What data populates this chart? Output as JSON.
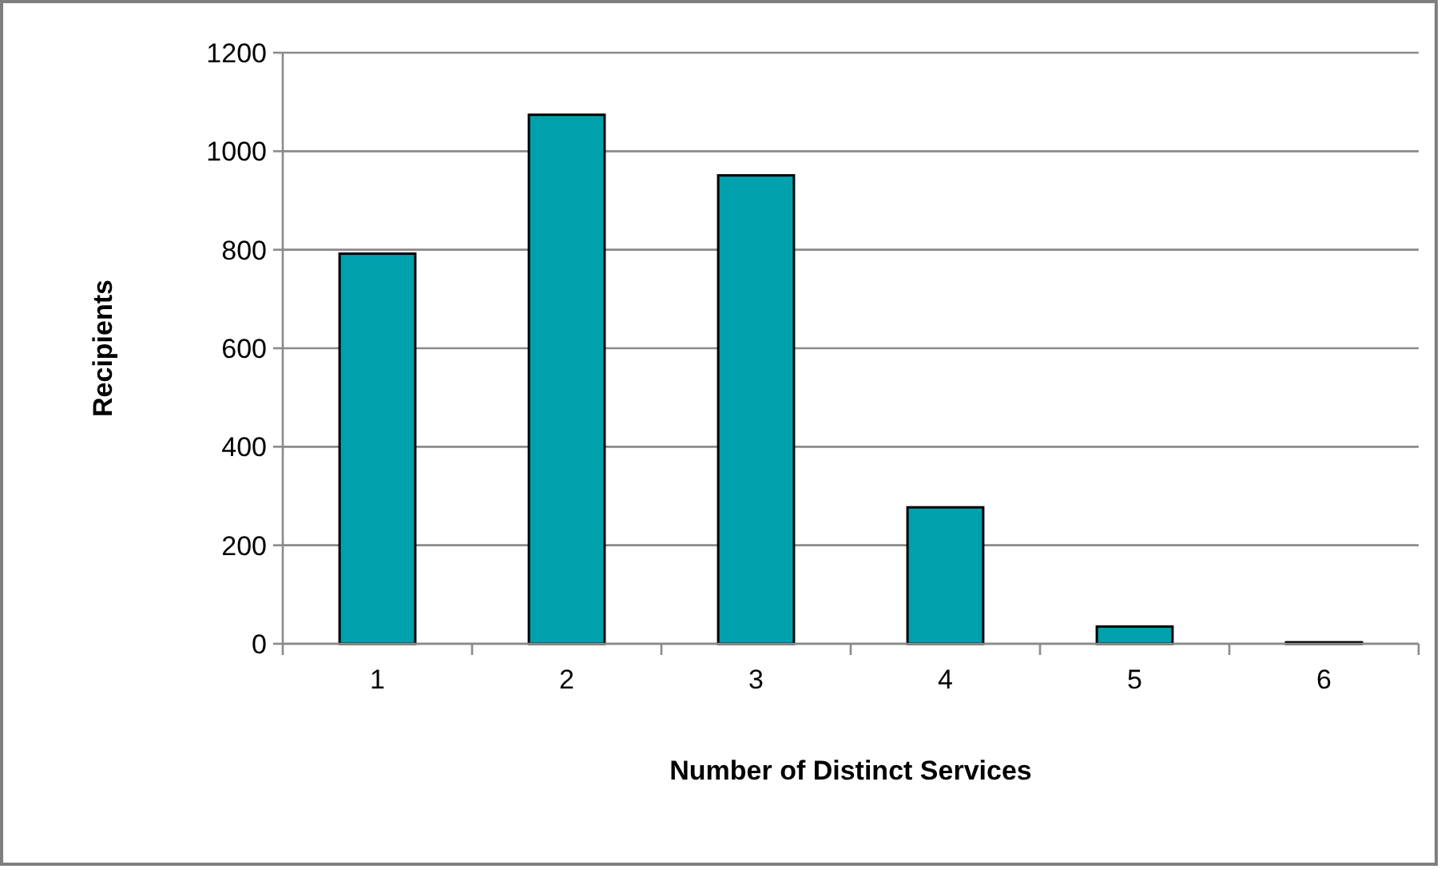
{
  "chart_data": {
    "type": "bar",
    "xlabel": "Number of Distinct Services",
    "ylabel": "Recipients",
    "categories": [
      "1",
      "2",
      "3",
      "4",
      "5",
      "6"
    ],
    "values": [
      792,
      1074,
      951,
      277,
      35,
      3
    ],
    "color": "#00a0ad",
    "ylim": [
      0,
      1200
    ],
    "yticks": [
      0,
      200,
      400,
      600,
      800,
      1000,
      1200
    ],
    "grid": "y"
  }
}
